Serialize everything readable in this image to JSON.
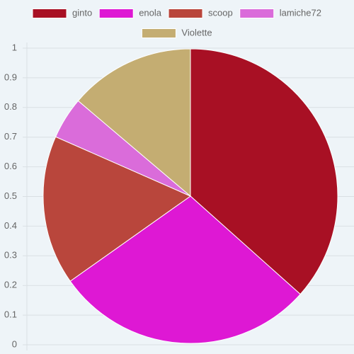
{
  "chart_data": {
    "type": "pie",
    "categories": [
      "ginto",
      "enola",
      "scoop",
      "lamiche72",
      "Violette"
    ],
    "values": [
      0.366,
      0.286,
      0.164,
      0.046,
      0.138
    ],
    "colors": [
      "#a81024",
      "#de18d4",
      "#b9463c",
      "#da6cda",
      "#c4ad72"
    ],
    "ylim": [
      0,
      1
    ],
    "yticks": [
      0,
      0.1,
      0.2,
      0.3,
      0.4,
      0.5,
      0.6,
      0.7,
      0.8,
      0.9,
      1
    ],
    "grid": true,
    "legend": "top"
  }
}
